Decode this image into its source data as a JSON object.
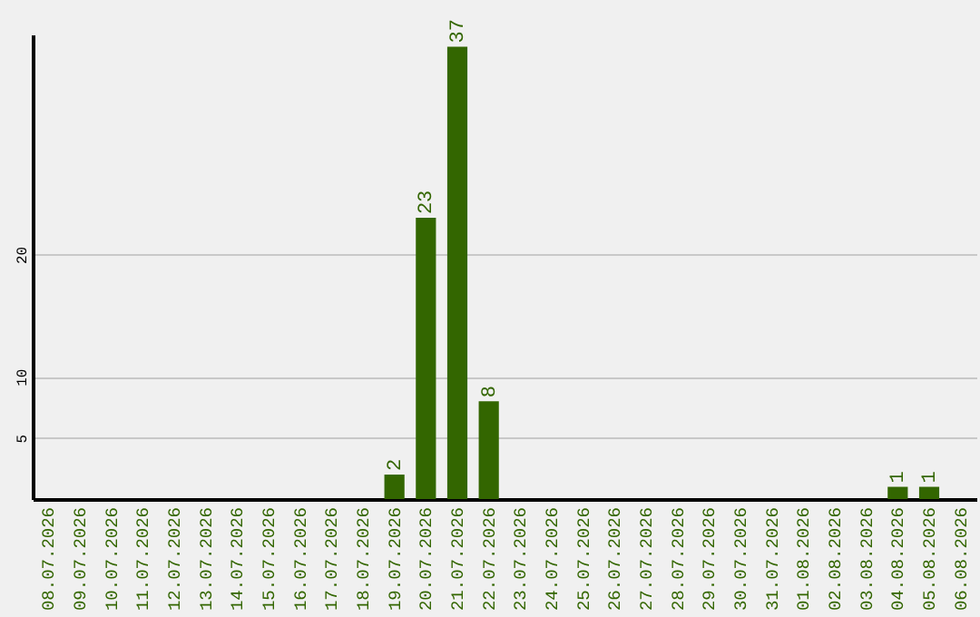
{
  "chart_data": {
    "type": "bar",
    "categories": [
      "08.07.2026",
      "09.07.2026",
      "10.07.2026",
      "11.07.2026",
      "12.07.2026",
      "13.07.2026",
      "14.07.2026",
      "15.07.2026",
      "16.07.2026",
      "17.07.2026",
      "18.07.2026",
      "19.07.2026",
      "20.07.2026",
      "21.07.2026",
      "22.07.2026",
      "23.07.2026",
      "24.07.2026",
      "25.07.2026",
      "26.07.2026",
      "27.07.2026",
      "28.07.2026",
      "29.07.2026",
      "30.07.2026",
      "31.07.2026",
      "01.08.2026",
      "02.08.2026",
      "03.08.2026",
      "04.08.2026",
      "05.08.2026",
      "06.08.2026"
    ],
    "values": [
      0,
      0,
      0,
      0,
      0,
      0,
      0,
      0,
      0,
      0,
      0,
      2,
      23,
      37,
      8,
      0,
      0,
      0,
      0,
      0,
      0,
      0,
      0,
      0,
      0,
      0,
      0,
      1,
      1,
      0
    ],
    "value_labels": [
      null,
      null,
      null,
      null,
      null,
      null,
      null,
      null,
      null,
      null,
      null,
      "2",
      "23",
      "37",
      "8",
      null,
      null,
      null,
      null,
      null,
      null,
      null,
      null,
      null,
      null,
      null,
      null,
      "1",
      "1",
      null
    ],
    "color": "#336600",
    "ylim": [
      0,
      38
    ],
    "yticks": [
      5,
      10,
      20
    ],
    "grid": "y"
  }
}
